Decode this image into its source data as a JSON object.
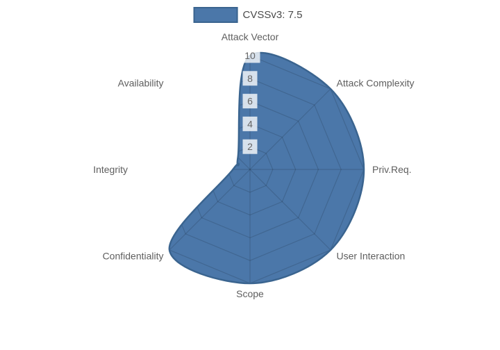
{
  "legend": {
    "label": "CVSSv3: 7.5"
  },
  "chart_data": {
    "type": "radar",
    "title": "",
    "categories": [
      "Attack Vector",
      "Attack Complexity",
      "Priv.Req.",
      "User Interaction",
      "Scope",
      "Confidentiality",
      "Integrity",
      "Availability"
    ],
    "series": [
      {
        "name": "CVSSv3: 7.5",
        "values": [
          10,
          10,
          10,
          10,
          10,
          10,
          1.5,
          1.5
        ]
      }
    ],
    "r_axis": {
      "min": 0,
      "max": 10,
      "ticks": [
        2,
        4,
        6,
        8,
        10
      ],
      "grid_shape": "polygon",
      "grid_visible_outside_fill": false
    },
    "legend_position": "top",
    "line_smoothing": "spline",
    "colors": {
      "fill": "#4b77a9",
      "border": "#3a648f",
      "grid_line": "rgba(0,0,0,0.14)",
      "tick_text": "#666666",
      "tick_backdrop": "rgba(255,255,255,0.78)",
      "axis_label_text": "#5e5e5e",
      "legend_text": "#4a4a4a"
    }
  }
}
